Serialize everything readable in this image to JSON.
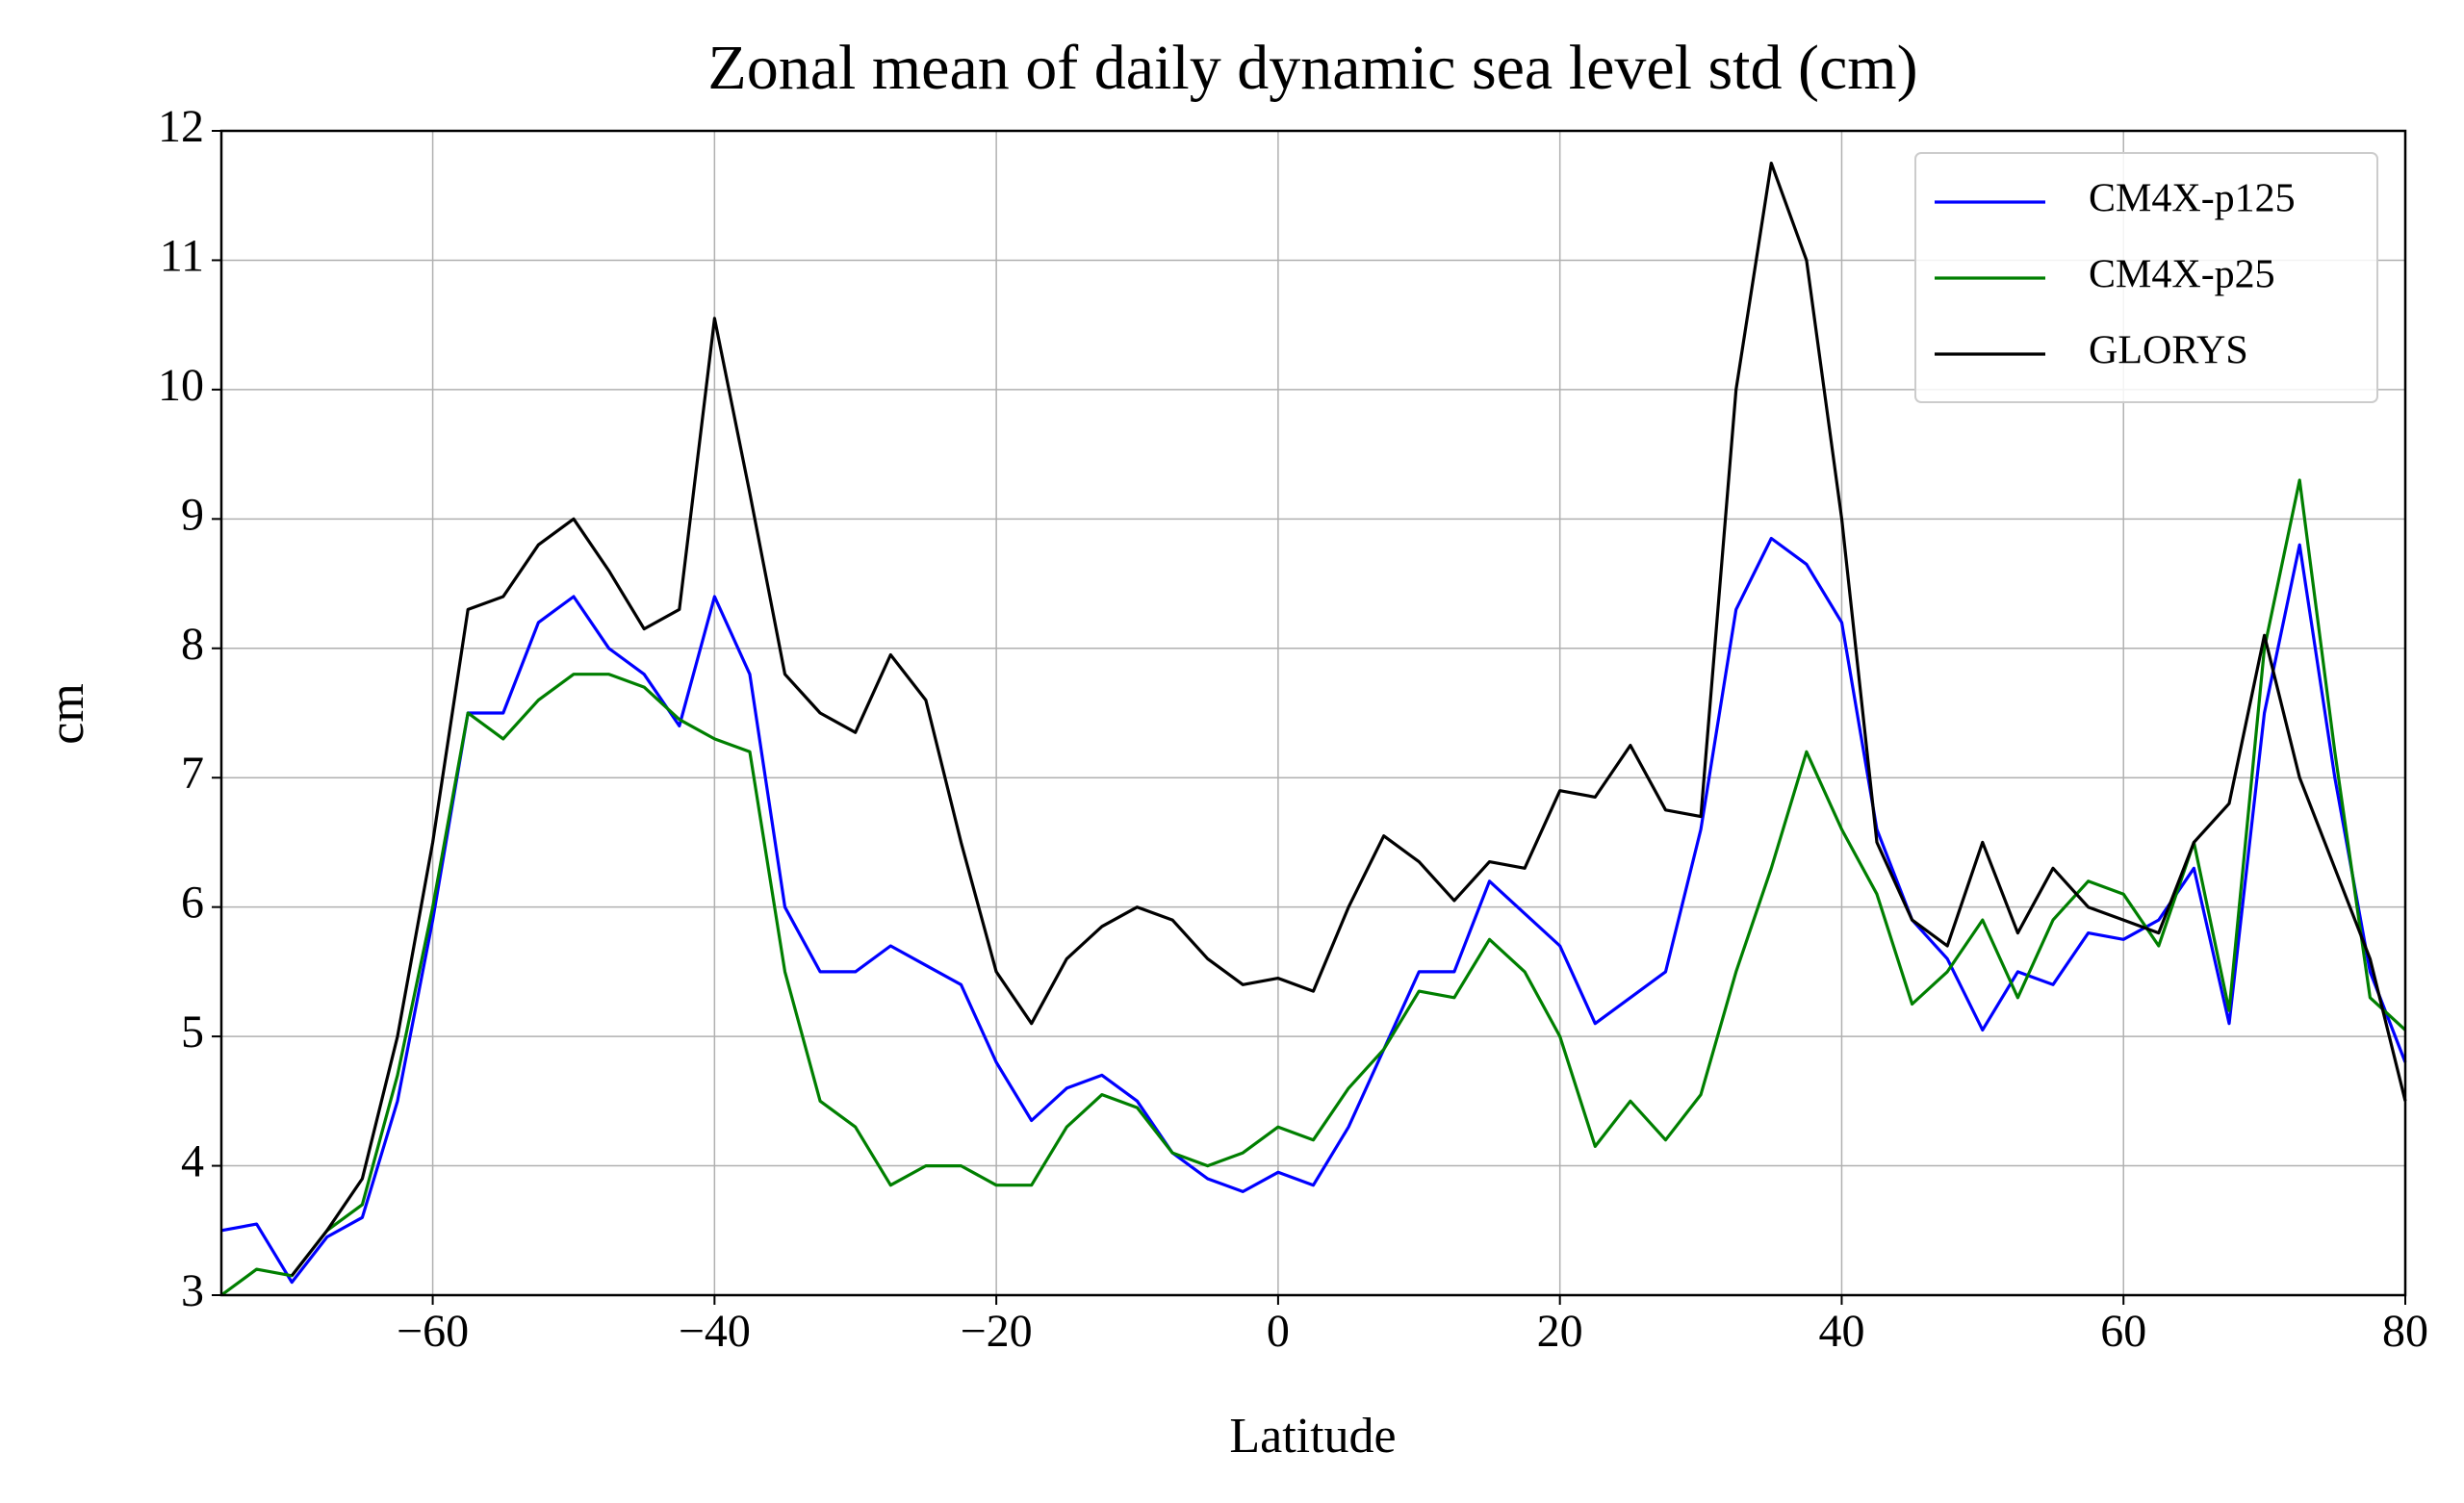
{
  "chart_data": {
    "type": "line",
    "title": "Zonal mean of daily dynamic sea level std (cm)",
    "xlabel": "Latitude",
    "ylabel": "cm",
    "x": [
      -75,
      -72.5,
      -70,
      -67.5,
      -65,
      -62.5,
      -60,
      -57.5,
      -55,
      -52.5,
      -50,
      -47.5,
      -45,
      -42.5,
      -40,
      -37.5,
      -35,
      -32.5,
      -30,
      -27.5,
      -25,
      -22.5,
      -20,
      -17.5,
      -15,
      -12.5,
      -10,
      -7.5,
      -5,
      -2.5,
      0,
      2.5,
      5,
      7.5,
      10,
      12.5,
      15,
      17.5,
      20,
      22.5,
      25,
      27.5,
      30,
      32.5,
      35,
      37.5,
      40,
      42.5,
      45,
      47.5,
      50,
      52.5,
      55,
      57.5,
      60,
      62.5,
      65,
      67.5,
      70,
      72.5,
      75,
      77.5,
      80
    ],
    "series": [
      {
        "name": "CM4X-p125",
        "color": "#0000ff",
        "values": [
          3.5,
          3.55,
          3.1,
          3.45,
          3.6,
          4.5,
          5.9,
          7.5,
          7.5,
          8.2,
          8.4,
          8.0,
          7.8,
          7.4,
          8.4,
          7.8,
          6.0,
          5.5,
          5.5,
          5.7,
          5.55,
          5.4,
          4.8,
          4.35,
          4.6,
          4.7,
          4.5,
          4.1,
          3.9,
          3.8,
          3.95,
          3.85,
          4.3,
          4.9,
          5.5,
          5.5,
          6.2,
          5.95,
          5.7,
          5.1,
          5.3,
          5.5,
          6.6,
          8.3,
          8.85,
          8.65,
          8.2,
          6.6,
          5.9,
          5.6,
          5.05,
          5.5,
          5.4,
          5.8,
          5.75,
          5.9,
          6.3,
          5.1,
          7.5,
          8.8,
          7.0,
          5.5,
          4.8
        ]
      },
      {
        "name": "CM4X-p25",
        "color": "#007f00",
        "values": [
          3.0,
          3.2,
          3.15,
          3.5,
          3.7,
          4.7,
          6.0,
          7.5,
          7.3,
          7.6,
          7.8,
          7.8,
          7.7,
          7.45,
          7.3,
          7.2,
          5.5,
          4.5,
          4.3,
          3.85,
          4.0,
          4.0,
          3.85,
          3.85,
          4.3,
          4.55,
          4.45,
          4.1,
          4.0,
          4.1,
          4.3,
          4.2,
          4.6,
          4.9,
          5.35,
          5.3,
          5.75,
          5.5,
          5.0,
          4.15,
          4.5,
          4.2,
          4.55,
          5.5,
          6.3,
          7.2,
          6.6,
          6.1,
          5.25,
          5.5,
          5.9,
          5.3,
          5.9,
          6.2,
          6.1,
          5.7,
          6.5,
          5.2,
          8.0,
          9.3,
          7.2,
          5.3,
          5.05
        ]
      },
      {
        "name": "GLORYS",
        "color": "#000000",
        "values": [
          null,
          null,
          3.15,
          3.5,
          3.9,
          5.0,
          6.5,
          8.3,
          8.4,
          8.8,
          9.0,
          8.6,
          8.15,
          8.3,
          10.55,
          9.2,
          7.8,
          7.5,
          7.35,
          7.95,
          7.6,
          6.5,
          5.5,
          5.1,
          5.6,
          5.85,
          6.0,
          5.9,
          5.6,
          5.4,
          5.45,
          5.35,
          6.0,
          6.55,
          6.35,
          6.05,
          6.35,
          6.3,
          6.9,
          6.85,
          7.25,
          6.75,
          6.7,
          10.0,
          11.75,
          11.0,
          9.0,
          6.5,
          5.9,
          5.7,
          6.5,
          5.8,
          6.3,
          6.0,
          5.9,
          5.8,
          6.5,
          6.8,
          8.1,
          7.0,
          6.3,
          5.6,
          4.5
        ]
      }
    ],
    "xlim": [
      -75,
      80
    ],
    "xticks": [
      {
        "value": -60,
        "label": "−60"
      },
      {
        "value": -40,
        "label": "−40"
      },
      {
        "value": -20,
        "label": "−20"
      },
      0,
      20,
      40,
      60,
      80
    ],
    "ylim": [
      3,
      12
    ],
    "yticks": [
      3,
      4,
      5,
      6,
      7,
      8,
      9,
      10,
      11,
      12
    ],
    "grid": true,
    "legend": "upper right"
  }
}
